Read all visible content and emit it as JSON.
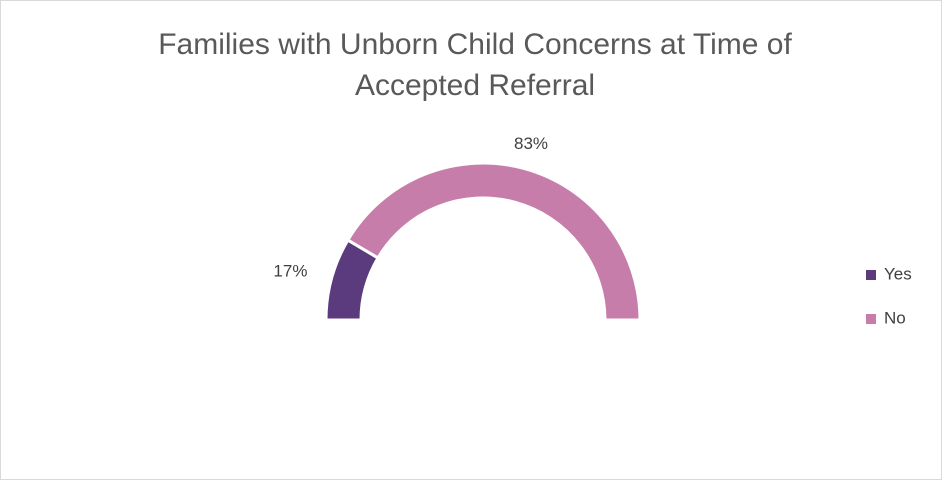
{
  "chart_data": {
    "type": "doughnut",
    "half": true,
    "title": "Families with Unborn Child Concerns at Time of Accepted Referral",
    "categories": [
      "Yes",
      "No"
    ],
    "values": [
      17,
      83
    ],
    "value_labels": [
      "17%",
      "83%"
    ],
    "colors": [
      "#5b3a7e",
      "#c77daa"
    ],
    "legend": "right"
  }
}
